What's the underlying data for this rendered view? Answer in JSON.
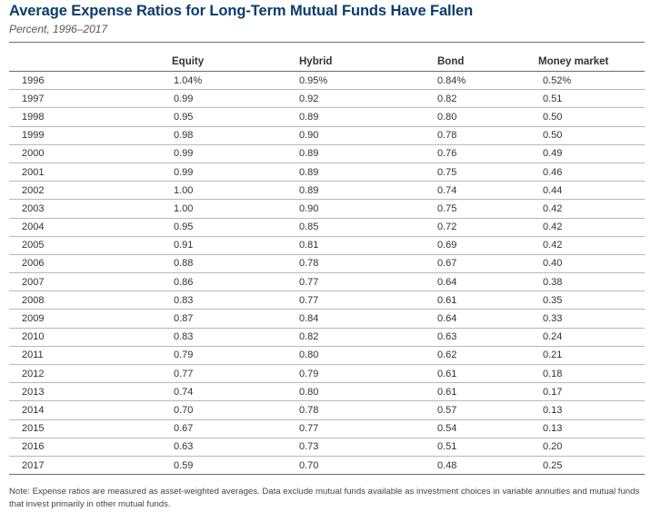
{
  "title": "Average Expense Ratios for Long-Term Mutual Funds Have Fallen",
  "subtitle": "Percent, 1996–2017",
  "note": "Note: Expense ratios are measured as asset-weighted averages. Data exclude mutual funds available as investment choices in variable annuities and mutual funds that invest primarily in other mutual funds.",
  "colors": {
    "title": "#0b3d6b",
    "rule": "#6b6b6b",
    "row_rule": "#b9b9b9"
  },
  "chart_data": {
    "type": "table",
    "title": "Average Expense Ratios for Long-Term Mutual Funds Have Fallen",
    "subtitle": "Percent, 1996–2017",
    "columns": [
      "",
      "Equity",
      "Hybrid",
      "Bond",
      "Money market"
    ],
    "rows": [
      [
        "1996",
        "1.04%",
        "0.95%",
        "0.84%",
        "0.52%"
      ],
      [
        "1997",
        "0.99",
        "0.92",
        "0.82",
        "0.51"
      ],
      [
        "1998",
        "0.95",
        "0.89",
        "0.80",
        "0.50"
      ],
      [
        "1999",
        "0.98",
        "0.90",
        "0.78",
        "0.50"
      ],
      [
        "2000",
        "0.99",
        "0.89",
        "0.76",
        "0.49"
      ],
      [
        "2001",
        "0.99",
        "0.89",
        "0.75",
        "0.46"
      ],
      [
        "2002",
        "1.00",
        "0.89",
        "0.74",
        "0.44"
      ],
      [
        "2003",
        "1.00",
        "0.90",
        "0.75",
        "0.42"
      ],
      [
        "2004",
        "0.95",
        "0.85",
        "0.72",
        "0.42"
      ],
      [
        "2005",
        "0.91",
        "0.81",
        "0.69",
        "0.42"
      ],
      [
        "2006",
        "0.88",
        "0.78",
        "0.67",
        "0.40"
      ],
      [
        "2007",
        "0.86",
        "0.77",
        "0.64",
        "0.38"
      ],
      [
        "2008",
        "0.83",
        "0.77",
        "0.61",
        "0.35"
      ],
      [
        "2009",
        "0.87",
        "0.84",
        "0.64",
        "0.33"
      ],
      [
        "2010",
        "0.83",
        "0.82",
        "0.63",
        "0.24"
      ],
      [
        "2011",
        "0.79",
        "0.80",
        "0.62",
        "0.21"
      ],
      [
        "2012",
        "0.77",
        "0.79",
        "0.61",
        "0.18"
      ],
      [
        "2013",
        "0.74",
        "0.80",
        "0.61",
        "0.17"
      ],
      [
        "2014",
        "0.70",
        "0.78",
        "0.57",
        "0.13"
      ],
      [
        "2015",
        "0.67",
        "0.77",
        "0.54",
        "0.13"
      ],
      [
        "2016",
        "0.63",
        "0.73",
        "0.51",
        "0.20"
      ],
      [
        "2017",
        "0.59",
        "0.70",
        "0.48",
        "0.25"
      ]
    ]
  }
}
